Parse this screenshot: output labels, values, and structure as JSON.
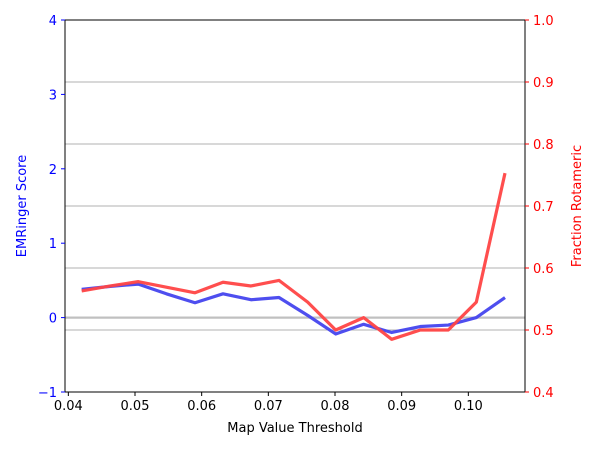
{
  "chart_data": {
    "type": "line",
    "xlabel": "Map Value Threshold",
    "ylabel_left": "EMRinger Score",
    "ylabel_right": "Fraction Rotameric",
    "xlim": [
      0.0395,
      0.1085
    ],
    "ylim_left": [
      -1,
      4
    ],
    "ylim_right": [
      0.4,
      1.0
    ],
    "x_ticks": [
      0.04,
      0.05,
      0.06,
      0.07,
      0.08,
      0.09,
      0.1
    ],
    "x_tick_labels": [
      "0.04",
      "0.05",
      "0.06",
      "0.07",
      "0.08",
      "0.09",
      "0.10"
    ],
    "y_left_ticks": [
      -1,
      0,
      1,
      2,
      3,
      4
    ],
    "y_left_tick_labels": [
      "−1",
      "0",
      "1",
      "2",
      "3",
      "4"
    ],
    "y_right_ticks": [
      0.4,
      0.5,
      0.6,
      0.7,
      0.8,
      0.9,
      1.0
    ],
    "y_right_tick_labels": [
      "0.4",
      "0.5",
      "0.6",
      "0.7",
      "0.8",
      "0.9",
      "1.0"
    ],
    "grid": "horizontal lines at right-axis ticks",
    "zero_line_left": 0,
    "colors": {
      "left_axis": "#0000ff",
      "right_axis": "#ff0000",
      "score_line": "#4444ee",
      "rotameric_line": "#ff4444",
      "grid": "#b0b0b0",
      "zero_line": "#c0c0c0"
    },
    "series": [
      {
        "axis": "left",
        "x": [
          0.042,
          0.0463,
          0.0505,
          0.0547,
          0.059,
          0.0632,
          0.0674,
          0.0716,
          0.0759,
          0.0801,
          0.0843,
          0.0885,
          0.0928,
          0.097,
          0.1012,
          0.1055
        ],
        "values": [
          0.38,
          0.42,
          0.45,
          0.32,
          0.2,
          0.32,
          0.24,
          0.27,
          0.03,
          -0.22,
          -0.09,
          -0.2,
          -0.12,
          -0.1,
          0.0,
          0.27
        ]
      },
      {
        "axis": "right",
        "x": [
          0.042,
          0.0463,
          0.0505,
          0.0547,
          0.059,
          0.0632,
          0.0674,
          0.0716,
          0.0759,
          0.0801,
          0.0843,
          0.0885,
          0.0928,
          0.097,
          0.1012,
          0.1055
        ],
        "values": [
          0.563,
          0.571,
          0.578,
          0.569,
          0.56,
          0.577,
          0.571,
          0.58,
          0.545,
          0.5,
          0.52,
          0.485,
          0.5,
          0.5,
          0.545,
          0.753
        ]
      }
    ]
  }
}
